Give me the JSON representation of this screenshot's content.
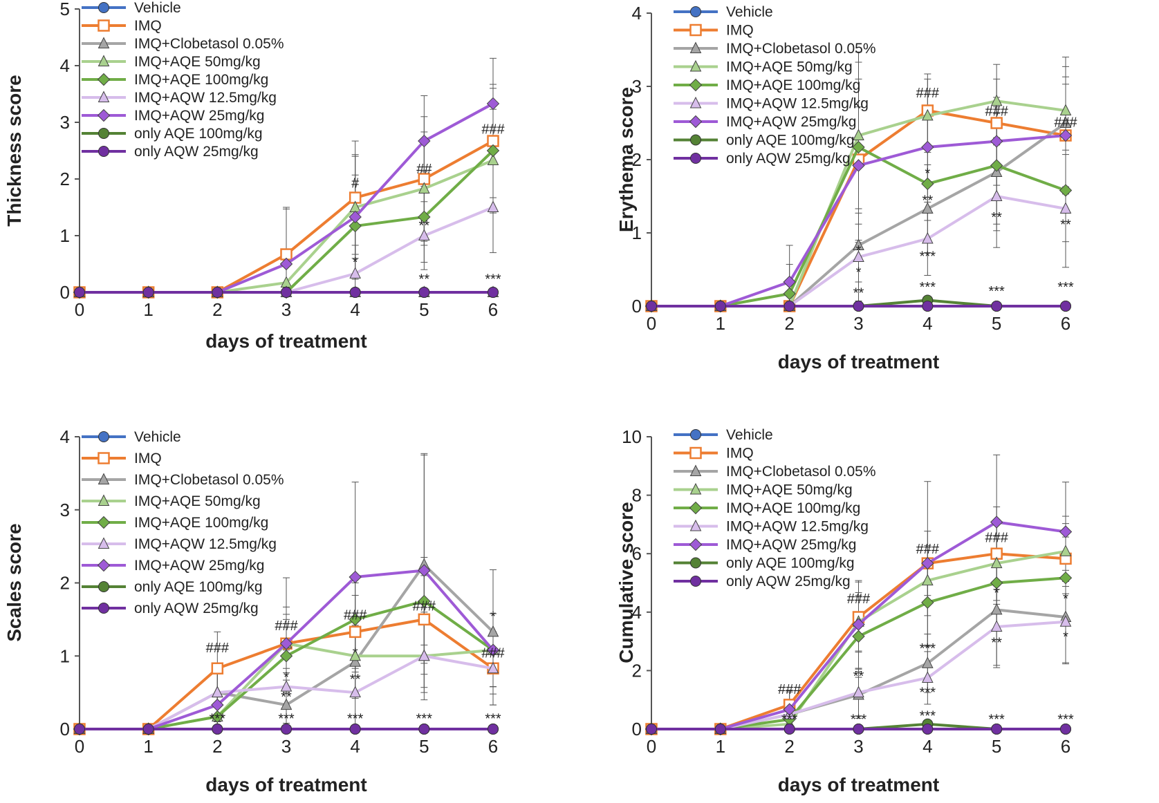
{
  "figure": {
    "colors": {
      "vehicle": "#4472C4",
      "imq": "#ED7D31",
      "clobetasol": "#A5A5A5",
      "aqe50": "#A9D18E",
      "aqe100": "#70AD47",
      "aqw125": "#D7BDEB",
      "aqw25": "#9E5AD6",
      "onlyaqe": "#548235",
      "onlyaqw": "#7030A0"
    }
  },
  "chart_data": [
    {
      "type": "line",
      "title": "",
      "xlabel": "days of treatment",
      "ylabel": "Thickness score",
      "x": [
        0,
        1,
        2,
        3,
        4,
        5,
        6
      ],
      "xlim": [
        0,
        6
      ],
      "ylim": [
        0,
        5
      ],
      "yticks": [
        0,
        1,
        2,
        3,
        4,
        5
      ],
      "grid": false,
      "legend": "top-left",
      "series": [
        {
          "name": "Vehicle",
          "marker": "circle",
          "color_key": "vehicle",
          "values": [
            0,
            0,
            0,
            0,
            0,
            0,
            0
          ]
        },
        {
          "name": "IMQ",
          "marker": "square",
          "color_key": "imq",
          "values": [
            0,
            0,
            0,
            0.67,
            1.67,
            2.0,
            2.67
          ],
          "errors": [
            0,
            0,
            0,
            0.8,
            1.0,
            1.1,
            1.0
          ]
        },
        {
          "name": "IMQ+Clobetasol 0.05%",
          "marker": "triangle",
          "color_key": "clobetasol",
          "values": [
            0,
            0,
            0,
            0,
            0,
            0,
            0
          ]
        },
        {
          "name": "IMQ+AQE 50mg/kg",
          "marker": "triangle",
          "color_key": "aqe50",
          "values": [
            0,
            0,
            0,
            0.17,
            1.5,
            1.83,
            2.33
          ],
          "errors": [
            0,
            0,
            0,
            0.4,
            0.9,
            1.0,
            0.9
          ]
        },
        {
          "name": "IMQ+AQE 100mg/kg",
          "marker": "diamond",
          "color_key": "aqe100",
          "values": [
            0,
            0,
            0,
            0,
            1.17,
            1.33,
            2.5
          ],
          "errors": [
            0,
            0,
            0,
            0,
            0.9,
            0.8,
            1.1
          ]
        },
        {
          "name": "IMQ+AQW 12.5mg/kg",
          "marker": "triangle",
          "color_key": "aqw125",
          "values": [
            0,
            0,
            0,
            0,
            0.33,
            1.0,
            1.5
          ],
          "errors": [
            0,
            0,
            0,
            0,
            0.5,
            0.6,
            0.8
          ]
        },
        {
          "name": "IMQ+AQW 25mg/kg",
          "marker": "diamond",
          "color_key": "aqw25",
          "values": [
            0,
            0,
            0,
            0.5,
            1.33,
            2.67,
            3.33
          ],
          "errors": [
            0,
            0,
            0,
            1.0,
            1.1,
            0.8,
            0.8
          ]
        },
        {
          "name": "only AQE 100mg/kg",
          "marker": "circle",
          "color_key": "onlyaqe",
          "values": [
            0,
            0,
            0,
            0,
            0,
            0,
            0
          ]
        },
        {
          "name": "only AQW 25mg/kg",
          "marker": "circle",
          "color_key": "onlyaqw",
          "values": [
            0,
            0,
            0,
            0,
            0,
            0,
            0
          ]
        }
      ],
      "annotations": [
        {
          "text": "#",
          "x": 4,
          "y": 1.85
        },
        {
          "text": "*",
          "x": 4,
          "y": 0.45
        },
        {
          "text": "##",
          "x": 5,
          "y": 2.1
        },
        {
          "text": "**",
          "x": 5,
          "y": 1.1
        },
        {
          "text": "**",
          "x": 5,
          "y": 0.15
        },
        {
          "text": "###",
          "x": 6,
          "y": 2.8
        },
        {
          "text": "***",
          "x": 6,
          "y": 0.15
        }
      ]
    },
    {
      "type": "line",
      "title": "",
      "xlabel": "days of treatment",
      "ylabel": "Erythema score",
      "x": [
        0,
        1,
        2,
        3,
        4,
        5,
        6
      ],
      "xlim": [
        0,
        6
      ],
      "ylim": [
        0,
        4
      ],
      "yticks": [
        0,
        1,
        2,
        3,
        4
      ],
      "grid": false,
      "legend": "top-left",
      "series": [
        {
          "name": "Vehicle",
          "marker": "circle",
          "color_key": "vehicle",
          "values": [
            0,
            0,
            0,
            0,
            0,
            0,
            0
          ]
        },
        {
          "name": "IMQ",
          "marker": "square",
          "color_key": "imq",
          "values": [
            0,
            0,
            0,
            2.0,
            2.67,
            2.5,
            2.33
          ],
          "errors": [
            0,
            0,
            0,
            1.1,
            0.5,
            0.6,
            0.8
          ]
        },
        {
          "name": "IMQ+Clobetasol 0.05%",
          "marker": "triangle",
          "color_key": "clobetasol",
          "values": [
            0,
            0,
            0,
            0.83,
            1.33,
            1.83,
            2.5
          ],
          "errors": [
            0,
            0,
            0,
            0.5,
            0.6,
            0.8,
            0.9
          ]
        },
        {
          "name": "IMQ+AQE 50mg/kg",
          "marker": "triangle",
          "color_key": "aqe50",
          "values": [
            0,
            0,
            0,
            2.33,
            2.6,
            2.8,
            2.67
          ],
          "errors": [
            0,
            0,
            0,
            1.0,
            0.5,
            0.5,
            0.6
          ]
        },
        {
          "name": "IMQ+AQE 100mg/kg",
          "marker": "diamond",
          "color_key": "aqe100",
          "values": [
            0,
            0,
            0.17,
            2.17,
            1.67,
            1.92,
            1.58
          ],
          "errors": [
            0,
            0,
            0.4,
            1.3,
            0.5,
            0.8,
            0.7
          ]
        },
        {
          "name": "IMQ+AQW 12.5mg/kg",
          "marker": "triangle",
          "color_key": "aqw125",
          "values": [
            0,
            0,
            0,
            0.67,
            0.92,
            1.5,
            1.33
          ],
          "errors": [
            0,
            0,
            0,
            0.6,
            0.5,
            0.7,
            0.8
          ]
        },
        {
          "name": "IMQ+AQW 25mg/kg",
          "marker": "diamond",
          "color_key": "aqw25",
          "values": [
            0,
            0,
            0.33,
            1.92,
            2.17,
            2.25,
            2.33
          ],
          "errors": [
            0,
            0,
            0.5,
            0.8,
            0.5,
            0.6,
            0.7
          ]
        },
        {
          "name": "only AQE 100mg/kg",
          "marker": "circle",
          "color_key": "onlyaqe",
          "values": [
            0,
            0,
            0,
            0,
            0.08,
            0,
            0
          ]
        },
        {
          "name": "only AQW 25mg/kg",
          "marker": "circle",
          "color_key": "onlyaqw",
          "values": [
            0,
            0,
            0,
            0,
            0,
            0,
            0
          ]
        }
      ],
      "annotations": [
        {
          "text": "###",
          "x": 4,
          "y": 2.85
        },
        {
          "text": "*",
          "x": 4,
          "y": 1.75
        },
        {
          "text": "**",
          "x": 4,
          "y": 1.38
        },
        {
          "text": "***",
          "x": 4,
          "y": 0.62
        },
        {
          "text": "***",
          "x": 4,
          "y": 0.2
        },
        {
          "text": "###",
          "x": 5,
          "y": 2.6
        },
        {
          "text": "**",
          "x": 5,
          "y": 1.15
        },
        {
          "text": "***",
          "x": 5,
          "y": 0.14
        },
        {
          "text": "###",
          "x": 6,
          "y": 2.45
        },
        {
          "text": "**",
          "x": 6,
          "y": 1.05
        },
        {
          "text": "***",
          "x": 6,
          "y": 0.2
        },
        {
          "text": "*",
          "x": 3,
          "y": 0.7
        },
        {
          "text": "*",
          "x": 3,
          "y": 0.4
        },
        {
          "text": "**",
          "x": 3,
          "y": 0.12
        }
      ]
    },
    {
      "type": "line",
      "title": "",
      "xlabel": "days of treatment",
      "ylabel": "Scales score",
      "x": [
        0,
        1,
        2,
        3,
        4,
        5,
        6
      ],
      "xlim": [
        0,
        6
      ],
      "ylim": [
        0,
        4
      ],
      "yticks": [
        0,
        1,
        2,
        3,
        4
      ],
      "grid": false,
      "legend": "top-left",
      "series": [
        {
          "name": "Vehicle",
          "marker": "circle",
          "color_key": "vehicle",
          "values": [
            0,
            0,
            0,
            0,
            0,
            0,
            0
          ]
        },
        {
          "name": "IMQ",
          "marker": "square",
          "color_key": "imq",
          "values": [
            0,
            0,
            0.83,
            1.17,
            1.33,
            1.5,
            0.83
          ],
          "errors": [
            0,
            0,
            0.5,
            0.5,
            0.5,
            0.6,
            0.5
          ]
        },
        {
          "name": "IMQ+Clobetasol 0.05%",
          "marker": "triangle",
          "color_key": "clobetasol",
          "values": [
            0,
            0,
            0.5,
            0.33,
            0.92,
            2.25,
            1.33
          ],
          "errors": [
            0,
            0,
            0.4,
            0.5,
            0.5,
            1.5,
            0.85
          ]
        },
        {
          "name": "IMQ+AQE 50mg/kg",
          "marker": "triangle",
          "color_key": "aqe50",
          "values": [
            0,
            0,
            0.17,
            1.17,
            1.0,
            1.0,
            1.08
          ],
          "errors": [
            0,
            0,
            0.3,
            0.4,
            0.5,
            0.5,
            0.5
          ]
        },
        {
          "name": "IMQ+AQE 100mg/kg",
          "marker": "diamond",
          "color_key": "aqe100",
          "values": [
            0,
            0,
            0.17,
            1.0,
            1.5,
            1.75,
            1.08
          ],
          "errors": [
            0,
            0,
            0.3,
            0.5,
            0.5,
            0.6,
            0.5
          ]
        },
        {
          "name": "IMQ+AQW 12.5mg/kg",
          "marker": "triangle",
          "color_key": "aqw125",
          "values": [
            0,
            0,
            0.5,
            0.58,
            0.5,
            1.0,
            0.83
          ],
          "errors": [
            0,
            0,
            0.4,
            0.5,
            0.5,
            0.6,
            0.5
          ]
        },
        {
          "name": "IMQ+AQW 25mg/kg",
          "marker": "diamond",
          "color_key": "aqw25",
          "values": [
            0,
            0,
            0.33,
            1.17,
            2.08,
            2.17,
            1.08
          ],
          "errors": [
            0,
            0,
            0.5,
            0.9,
            1.3,
            1.6,
            0.5
          ]
        },
        {
          "name": "only AQE 100mg/kg",
          "marker": "circle",
          "color_key": "onlyaqe",
          "values": [
            0,
            0,
            0,
            0,
            0,
            0,
            0
          ]
        },
        {
          "name": "only AQW 25mg/kg",
          "marker": "circle",
          "color_key": "onlyaqw",
          "values": [
            0,
            0,
            0,
            0,
            0,
            0,
            0
          ]
        }
      ],
      "annotations": [
        {
          "text": "###",
          "x": 2,
          "y": 1.05
        },
        {
          "text": "***",
          "x": 2,
          "y": 0.08
        },
        {
          "text": "###",
          "x": 3,
          "y": 1.35
        },
        {
          "text": "*",
          "x": 3,
          "y": 0.65
        },
        {
          "text": "**",
          "x": 3,
          "y": 0.38
        },
        {
          "text": "***",
          "x": 3,
          "y": 0.08
        },
        {
          "text": "###",
          "x": 4,
          "y": 1.5
        },
        {
          "text": "*",
          "x": 4,
          "y": 0.98
        },
        {
          "text": "**",
          "x": 4,
          "y": 0.62
        },
        {
          "text": "***",
          "x": 4,
          "y": 0.08
        },
        {
          "text": "###",
          "x": 5,
          "y": 1.62
        },
        {
          "text": "***",
          "x": 5,
          "y": 0.08
        },
        {
          "text": "*",
          "x": 6,
          "y": 1.48
        },
        {
          "text": "###",
          "x": 6,
          "y": 0.98
        },
        {
          "text": "***",
          "x": 6,
          "y": 0.08
        }
      ]
    },
    {
      "type": "line",
      "title": "",
      "xlabel": "days of treatment",
      "ylabel": "Cumulative score",
      "x": [
        0,
        1,
        2,
        3,
        4,
        5,
        6
      ],
      "xlim": [
        0,
        6
      ],
      "ylim": [
        0,
        10
      ],
      "yticks": [
        0,
        2,
        4,
        6,
        8,
        10
      ],
      "grid": false,
      "legend": "top-left",
      "series": [
        {
          "name": "Vehicle",
          "marker": "circle",
          "color_key": "vehicle",
          "values": [
            0,
            0,
            0,
            0,
            0,
            0,
            0
          ]
        },
        {
          "name": "IMQ",
          "marker": "square",
          "color_key": "imq",
          "values": [
            0,
            0,
            0.83,
            3.83,
            5.67,
            6.0,
            5.83
          ],
          "errors": [
            0,
            0,
            0.5,
            1.2,
            1.1,
            1.6,
            1.2
          ]
        },
        {
          "name": "IMQ+Clobetasol 0.05%",
          "marker": "triangle",
          "color_key": "clobetasol",
          "values": [
            0,
            0,
            0.5,
            1.17,
            2.25,
            4.08,
            3.83
          ],
          "errors": [
            0,
            0,
            0.4,
            0.8,
            1.0,
            1.9,
            1.6
          ]
        },
        {
          "name": "IMQ+AQE 50mg/kg",
          "marker": "triangle",
          "color_key": "aqe50",
          "values": [
            0,
            0,
            0.17,
            3.67,
            5.08,
            5.67,
            6.08
          ],
          "errors": [
            0,
            0,
            0.3,
            1.0,
            1.2,
            1.4,
            1.2
          ]
        },
        {
          "name": "IMQ+AQE 100mg/kg",
          "marker": "diamond",
          "color_key": "aqe100",
          "values": [
            0,
            0,
            0.33,
            3.17,
            4.33,
            5.0,
            5.17
          ],
          "errors": [
            0,
            0,
            0.4,
            1.4,
            1.5,
            1.6,
            1.4
          ]
        },
        {
          "name": "IMQ+AQW 12.5mg/kg",
          "marker": "triangle",
          "color_key": "aqw125",
          "values": [
            0,
            0,
            0.5,
            1.25,
            1.75,
            3.5,
            3.67
          ],
          "errors": [
            0,
            0,
            0.4,
            0.8,
            0.9,
            1.4,
            1.4
          ]
        },
        {
          "name": "IMQ+AQW 25mg/kg",
          "marker": "diamond",
          "color_key": "aqw25",
          "values": [
            0,
            0,
            0.67,
            3.58,
            5.67,
            7.08,
            6.75
          ],
          "errors": [
            0,
            0,
            0.6,
            1.5,
            2.8,
            2.3,
            1.7
          ]
        },
        {
          "name": "only AQE 100mg/kg",
          "marker": "circle",
          "color_key": "onlyaqe",
          "values": [
            0,
            0,
            0,
            0,
            0.17,
            0,
            0
          ]
        },
        {
          "name": "only AQW 25mg/kg",
          "marker": "circle",
          "color_key": "onlyaqw",
          "values": [
            0,
            0,
            0,
            0,
            0,
            0,
            0
          ]
        }
      ],
      "annotations": [
        {
          "text": "###",
          "x": 2,
          "y": 1.2
        },
        {
          "text": "***",
          "x": 2,
          "y": 0.18
        },
        {
          "text": "###",
          "x": 3,
          "y": 4.3
        },
        {
          "text": "**",
          "x": 3,
          "y": 1.65
        },
        {
          "text": "***",
          "x": 3,
          "y": 0.18
        },
        {
          "text": "###",
          "x": 4,
          "y": 6.0
        },
        {
          "text": "***",
          "x": 4,
          "y": 2.6
        },
        {
          "text": "***",
          "x": 4,
          "y": 1.1
        },
        {
          "text": "***",
          "x": 4,
          "y": 0.3
        },
        {
          "text": "###",
          "x": 5,
          "y": 6.4
        },
        {
          "text": "*",
          "x": 5,
          "y": 4.5
        },
        {
          "text": "**",
          "x": 5,
          "y": 2.8
        },
        {
          "text": "***",
          "x": 5,
          "y": 0.18
        },
        {
          "text": "*",
          "x": 6,
          "y": 4.3
        },
        {
          "text": "*",
          "x": 6,
          "y": 3.0
        },
        {
          "text": "***",
          "x": 6,
          "y": 0.18
        }
      ]
    }
  ]
}
